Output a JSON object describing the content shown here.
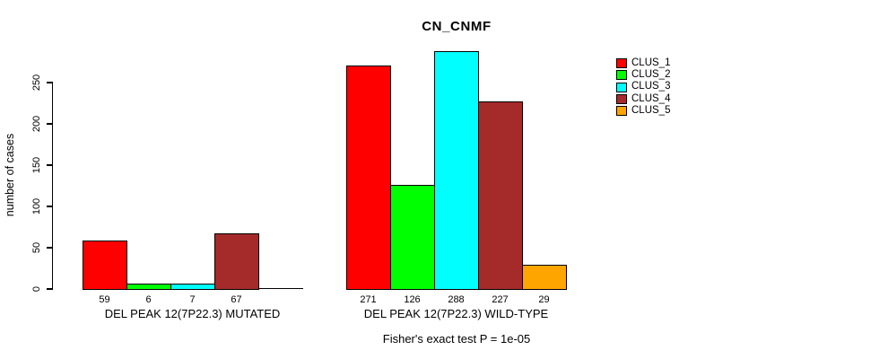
{
  "chart_data": {
    "type": "bar",
    "title": "CN_CNMF",
    "ylabel": "number of cases",
    "xlabel": "",
    "ylim": [
      0,
      290
    ],
    "yticks": [
      0,
      50,
      100,
      150,
      200,
      250
    ],
    "grid": false,
    "legend_position": "top-right-outside-plot",
    "categories": [
      "DEL PEAK 12(7P22.3) MUTATED",
      "DEL PEAK 12(7P22.3) WILD-TYPE"
    ],
    "series": [
      {
        "name": "CLUS_1",
        "color": "#FF0000",
        "values": [
          59,
          271
        ]
      },
      {
        "name": "CLUS_2",
        "color": "#00FF00",
        "values": [
          6,
          126
        ]
      },
      {
        "name": "CLUS_3",
        "color": "#00FFFF",
        "values": [
          7,
          288
        ]
      },
      {
        "name": "CLUS_4",
        "color": "#A52A2A",
        "values": [
          67,
          227
        ]
      },
      {
        "name": "CLUS_5",
        "color": "#FFA500",
        "values": [
          0,
          29
        ]
      }
    ],
    "bar_value_labels": [
      [
        "59",
        "6",
        "7",
        "67",
        ""
      ],
      [
        "271",
        "126",
        "288",
        "227",
        "29"
      ]
    ],
    "footnote": "Fisher's exact test P = 1e-05",
    "axis_color": "#000000",
    "background_color": "#FFFFFF"
  }
}
